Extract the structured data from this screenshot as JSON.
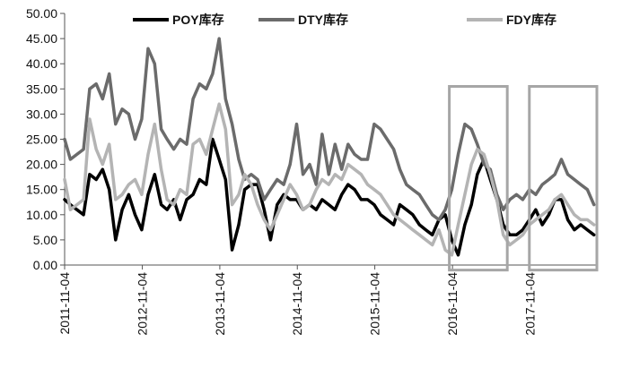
{
  "chart_data": {
    "type": "line",
    "ylim": [
      0,
      50
    ],
    "y_ticks": [
      "0.00",
      "5.00",
      "10.00",
      "15.00",
      "20.00",
      "25.00",
      "30.00",
      "35.00",
      "40.00",
      "45.00",
      "50.00"
    ],
    "x_ticks": [
      "2011-11-04",
      "2012-11-04",
      "2013-11-04",
      "2014-11-04",
      "2015-11-04",
      "2016-11-04",
      "2017-11-04"
    ],
    "xlim": [
      "2011-11-04",
      "2018-09-15"
    ],
    "grid": false,
    "legend_position": "top",
    "highlight_boxes": [
      {
        "x_from": "2016-10-20",
        "x_to": "2017-07-20",
        "y_from": -1,
        "y_to": 35.5
      },
      {
        "x_from": "2017-11-01",
        "x_to": "2018-09-15",
        "y_from": -1,
        "y_to": 35.5
      }
    ],
    "series": [
      {
        "name": "POY库存",
        "color": "#000000",
        "x": [
          "2011-11-04",
          "2011-12-01",
          "2012-01-01",
          "2012-02-01",
          "2012-03-01",
          "2012-04-01",
          "2012-05-01",
          "2012-06-01",
          "2012-07-01",
          "2012-08-01",
          "2012-09-01",
          "2012-10-01",
          "2012-11-01",
          "2012-12-01",
          "2013-01-01",
          "2013-02-01",
          "2013-03-01",
          "2013-04-01",
          "2013-05-01",
          "2013-06-01",
          "2013-07-01",
          "2013-08-01",
          "2013-09-01",
          "2013-10-01",
          "2013-11-01",
          "2013-12-01",
          "2014-01-01",
          "2014-02-01",
          "2014-03-01",
          "2014-04-01",
          "2014-05-01",
          "2014-06-01",
          "2014-07-01",
          "2014-08-01",
          "2014-09-01",
          "2014-10-01",
          "2014-11-01",
          "2014-12-01",
          "2015-01-01",
          "2015-02-01",
          "2015-03-01",
          "2015-04-01",
          "2015-05-01",
          "2015-06-01",
          "2015-07-01",
          "2015-08-01",
          "2015-09-01",
          "2015-10-01",
          "2015-11-01",
          "2015-12-01",
          "2016-01-01",
          "2016-02-01",
          "2016-03-01",
          "2016-04-01",
          "2016-05-01",
          "2016-06-01",
          "2016-07-01",
          "2016-08-01",
          "2016-09-01",
          "2016-10-01",
          "2016-11-01",
          "2016-12-01",
          "2017-01-01",
          "2017-02-01",
          "2017-03-01",
          "2017-04-01",
          "2017-05-01",
          "2017-06-01",
          "2017-07-01",
          "2017-08-01",
          "2017-09-01",
          "2017-10-01",
          "2017-11-01",
          "2017-12-01",
          "2018-01-01",
          "2018-02-01",
          "2018-03-01",
          "2018-04-01",
          "2018-05-01",
          "2018-06-01",
          "2018-07-01",
          "2018-08-01",
          "2018-09-01"
        ],
        "values": [
          13,
          12,
          11,
          10,
          18,
          17,
          19,
          15,
          5,
          11,
          14,
          10,
          7,
          14,
          18,
          12,
          11,
          13,
          9,
          13,
          14,
          17,
          16,
          25,
          21,
          17,
          3,
          8,
          15,
          16,
          16,
          11,
          5,
          12,
          14,
          13,
          13,
          11,
          12,
          11,
          13,
          12,
          11,
          14,
          16,
          15,
          13,
          13,
          12,
          10,
          9,
          8,
          12,
          11,
          10,
          8,
          7,
          6,
          9,
          10,
          5,
          2,
          8,
          12,
          18,
          21,
          17,
          13,
          8,
          6,
          6,
          7,
          9,
          11,
          8,
          10,
          13,
          13,
          9,
          7,
          8,
          7,
          6
        ]
      },
      {
        "name": "DTY库存",
        "color": "#6b6b6b",
        "x": [
          "2011-11-04",
          "2011-12-01",
          "2012-01-01",
          "2012-02-01",
          "2012-03-01",
          "2012-04-01",
          "2012-05-01",
          "2012-06-01",
          "2012-07-01",
          "2012-08-01",
          "2012-09-01",
          "2012-10-01",
          "2012-11-01",
          "2012-12-01",
          "2013-01-01",
          "2013-02-01",
          "2013-03-01",
          "2013-04-01",
          "2013-05-01",
          "2013-06-01",
          "2013-07-01",
          "2013-08-01",
          "2013-09-01",
          "2013-10-01",
          "2013-11-01",
          "2013-12-01",
          "2014-01-01",
          "2014-02-01",
          "2014-03-01",
          "2014-04-01",
          "2014-05-01",
          "2014-06-01",
          "2014-07-01",
          "2014-08-01",
          "2014-09-01",
          "2014-10-01",
          "2014-11-01",
          "2014-12-01",
          "2015-01-01",
          "2015-02-01",
          "2015-03-01",
          "2015-04-01",
          "2015-05-01",
          "2015-06-01",
          "2015-07-01",
          "2015-08-01",
          "2015-09-01",
          "2015-10-01",
          "2015-11-01",
          "2015-12-01",
          "2016-01-01",
          "2016-02-01",
          "2016-03-01",
          "2016-04-01",
          "2016-05-01",
          "2016-06-01",
          "2016-07-01",
          "2016-08-01",
          "2016-09-01",
          "2016-10-01",
          "2016-11-01",
          "2016-12-01",
          "2017-01-01",
          "2017-02-01",
          "2017-03-01",
          "2017-04-01",
          "2017-05-01",
          "2017-06-01",
          "2017-07-01",
          "2017-08-01",
          "2017-09-01",
          "2017-10-01",
          "2017-11-01",
          "2017-12-01",
          "2018-01-01",
          "2018-02-01",
          "2018-03-01",
          "2018-04-01",
          "2018-05-01",
          "2018-06-01",
          "2018-07-01",
          "2018-08-01",
          "2018-09-01"
        ],
        "values": [
          25,
          21,
          22,
          23,
          35,
          36,
          33,
          38,
          28,
          31,
          30,
          25,
          29,
          43,
          40,
          27,
          25,
          23,
          25,
          24,
          33,
          36,
          35,
          38,
          45,
          33,
          28,
          21,
          17,
          18,
          17,
          13,
          15,
          17,
          16,
          20,
          28,
          18,
          20,
          16,
          26,
          18,
          24,
          19,
          24,
          22,
          21,
          21,
          28,
          27,
          25,
          23,
          19,
          16,
          15,
          14,
          12,
          10,
          9,
          11,
          15,
          22,
          28,
          27,
          24,
          20,
          19,
          14,
          11,
          13,
          14,
          13,
          15,
          14,
          16,
          17,
          18,
          21,
          18,
          17,
          16,
          15,
          12
        ]
      },
      {
        "name": "FDY库存",
        "color": "#b4b4b4",
        "x": [
          "2011-11-04",
          "2011-12-01",
          "2012-01-01",
          "2012-02-01",
          "2012-03-01",
          "2012-04-01",
          "2012-05-01",
          "2012-06-01",
          "2012-07-01",
          "2012-08-01",
          "2012-09-01",
          "2012-10-01",
          "2012-11-01",
          "2012-12-01",
          "2013-01-01",
          "2013-02-01",
          "2013-03-01",
          "2013-04-01",
          "2013-05-01",
          "2013-06-01",
          "2013-07-01",
          "2013-08-01",
          "2013-09-01",
          "2013-10-01",
          "2013-11-01",
          "2013-12-01",
          "2014-01-01",
          "2014-02-01",
          "2014-03-01",
          "2014-04-01",
          "2014-05-01",
          "2014-06-01",
          "2014-07-01",
          "2014-08-01",
          "2014-09-01",
          "2014-10-01",
          "2014-11-01",
          "2014-12-01",
          "2015-01-01",
          "2015-02-01",
          "2015-03-01",
          "2015-04-01",
          "2015-05-01",
          "2015-06-01",
          "2015-07-01",
          "2015-08-01",
          "2015-09-01",
          "2015-10-01",
          "2015-11-01",
          "2015-12-01",
          "2016-01-01",
          "2016-02-01",
          "2016-03-01",
          "2016-04-01",
          "2016-05-01",
          "2016-06-01",
          "2016-07-01",
          "2016-08-01",
          "2016-09-01",
          "2016-10-01",
          "2016-11-01",
          "2016-12-01",
          "2017-01-01",
          "2017-02-01",
          "2017-03-01",
          "2017-04-01",
          "2017-05-01",
          "2017-06-01",
          "2017-07-01",
          "2017-08-01",
          "2017-09-01",
          "2017-10-01",
          "2017-11-01",
          "2017-12-01",
          "2018-01-01",
          "2018-02-01",
          "2018-03-01",
          "2018-04-01",
          "2018-05-01",
          "2018-06-01",
          "2018-07-01",
          "2018-08-01",
          "2018-09-01"
        ],
        "values": [
          17,
          11,
          12,
          13,
          29,
          23,
          20,
          24,
          13,
          14,
          16,
          17,
          14,
          22,
          28,
          19,
          13,
          12,
          15,
          14,
          24,
          25,
          22,
          27,
          32,
          27,
          12,
          14,
          18,
          16,
          12,
          9,
          7,
          10,
          13,
          16,
          14,
          11,
          12,
          15,
          17,
          16,
          18,
          17,
          20,
          19,
          18,
          16,
          15,
          14,
          12,
          10,
          9,
          8,
          7,
          6,
          5,
          4,
          7,
          3,
          2,
          8,
          14,
          20,
          23,
          22,
          18,
          13,
          6,
          4,
          5,
          6,
          8,
          9,
          10,
          11,
          13,
          14,
          12,
          10,
          9,
          9,
          8
        ]
      }
    ]
  }
}
